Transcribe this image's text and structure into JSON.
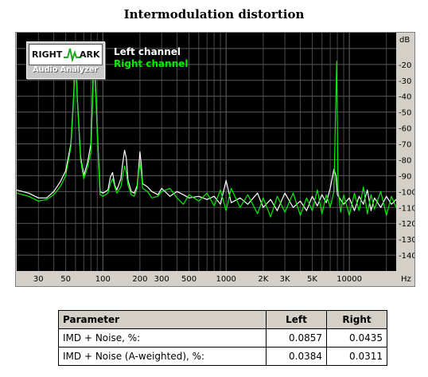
{
  "chart_data": {
    "type": "line",
    "title": "Intermodulation distortion",
    "xscale": "log",
    "xlim": [
      20,
      24000
    ],
    "ylim": [
      -150,
      0
    ],
    "y_unit": "dB",
    "x_unit": "Hz",
    "x_ticks": [
      {
        "value": 30,
        "label": "30"
      },
      {
        "value": 50,
        "label": "50"
      },
      {
        "value": 100,
        "label": "100"
      },
      {
        "value": 200,
        "label": "200"
      },
      {
        "value": 300,
        "label": "300"
      },
      {
        "value": 500,
        "label": "500"
      },
      {
        "value": 1000,
        "label": "1000"
      },
      {
        "value": 2000,
        "label": "2K"
      },
      {
        "value": 3000,
        "label": "3K"
      },
      {
        "value": 5000,
        "label": "5K"
      },
      {
        "value": 10000,
        "label": "10000"
      }
    ],
    "y_ticks": [
      -20,
      -30,
      -40,
      -50,
      -60,
      -70,
      -80,
      -90,
      -100,
      -110,
      -120,
      -130,
      -140
    ],
    "grid": true,
    "legend": "top-left",
    "series": [
      {
        "name": "Left channel",
        "color": "#ffffff",
        "points": [
          [
            20,
            -99
          ],
          [
            25,
            -101
          ],
          [
            30,
            -104
          ],
          [
            35,
            -104
          ],
          [
            40,
            -100
          ],
          [
            45,
            -94
          ],
          [
            50,
            -87
          ],
          [
            55,
            -70
          ],
          [
            58,
            -40
          ],
          [
            60,
            -8
          ],
          [
            62,
            -40
          ],
          [
            66,
            -78
          ],
          [
            70,
            -90
          ],
          [
            75,
            -82
          ],
          [
            80,
            -70
          ],
          [
            85,
            -10
          ],
          [
            90,
            -60
          ],
          [
            95,
            -100
          ],
          [
            100,
            -101
          ],
          [
            105,
            -100
          ],
          [
            110,
            -99
          ],
          [
            115,
            -91
          ],
          [
            120,
            -88
          ],
          [
            125,
            -96
          ],
          [
            130,
            -99
          ],
          [
            140,
            -92
          ],
          [
            145,
            -82
          ],
          [
            150,
            -74
          ],
          [
            155,
            -79
          ],
          [
            160,
            -93
          ],
          [
            170,
            -100
          ],
          [
            180,
            -101
          ],
          [
            190,
            -96
          ],
          [
            195,
            -86
          ],
          [
            200,
            -75
          ],
          [
            205,
            -83
          ],
          [
            210,
            -95
          ],
          [
            230,
            -97
          ],
          [
            250,
            -100
          ],
          [
            280,
            -102
          ],
          [
            300,
            -98
          ],
          [
            350,
            -103
          ],
          [
            400,
            -100
          ],
          [
            450,
            -102
          ],
          [
            500,
            -104
          ],
          [
            600,
            -103
          ],
          [
            700,
            -105
          ],
          [
            800,
            -103
          ],
          [
            900,
            -108
          ],
          [
            1000,
            -93
          ],
          [
            1100,
            -107
          ],
          [
            1300,
            -104
          ],
          [
            1500,
            -108
          ],
          [
            1800,
            -101
          ],
          [
            2000,
            -110
          ],
          [
            2300,
            -105
          ],
          [
            2600,
            -112
          ],
          [
            3000,
            -101
          ],
          [
            3500,
            -110
          ],
          [
            4000,
            -106
          ],
          [
            4500,
            -112
          ],
          [
            5000,
            -103
          ],
          [
            5500,
            -109
          ],
          [
            6000,
            -102
          ],
          [
            6500,
            -107
          ],
          [
            7000,
            -98
          ],
          [
            7500,
            -86
          ],
          [
            7800,
            -90
          ],
          [
            8000,
            -102
          ],
          [
            9000,
            -108
          ],
          [
            10000,
            -104
          ],
          [
            11000,
            -112
          ],
          [
            12000,
            -103
          ],
          [
            13000,
            -108
          ],
          [
            14000,
            -99
          ],
          [
            15000,
            -112
          ],
          [
            16000,
            -104
          ],
          [
            18000,
            -110
          ],
          [
            20000,
            -103
          ],
          [
            22000,
            -108
          ],
          [
            24000,
            -105
          ]
        ]
      },
      {
        "name": "Right channel",
        "color": "#00ee00",
        "points": [
          [
            20,
            -101
          ],
          [
            25,
            -103
          ],
          [
            30,
            -106
          ],
          [
            35,
            -105
          ],
          [
            40,
            -102
          ],
          [
            45,
            -97
          ],
          [
            50,
            -90
          ],
          [
            55,
            -72
          ],
          [
            58,
            -42
          ],
          [
            60,
            -12
          ],
          [
            62,
            -42
          ],
          [
            66,
            -80
          ],
          [
            70,
            -92
          ],
          [
            75,
            -85
          ],
          [
            80,
            -75
          ],
          [
            85,
            -15
          ],
          [
            90,
            -62
          ],
          [
            95,
            -102
          ],
          [
            100,
            -103
          ],
          [
            105,
            -102
          ],
          [
            110,
            -101
          ],
          [
            115,
            -95
          ],
          [
            120,
            -92
          ],
          [
            125,
            -97
          ],
          [
            130,
            -101
          ],
          [
            140,
            -97
          ],
          [
            145,
            -90
          ],
          [
            150,
            -84
          ],
          [
            155,
            -88
          ],
          [
            160,
            -96
          ],
          [
            170,
            -102
          ],
          [
            180,
            -103
          ],
          [
            190,
            -98
          ],
          [
            195,
            -88
          ],
          [
            200,
            -82
          ],
          [
            205,
            -88
          ],
          [
            210,
            -98
          ],
          [
            230,
            -100
          ],
          [
            250,
            -104
          ],
          [
            280,
            -103
          ],
          [
            300,
            -100
          ],
          [
            350,
            -98
          ],
          [
            400,
            -104
          ],
          [
            450,
            -108
          ],
          [
            500,
            -102
          ],
          [
            600,
            -106
          ],
          [
            700,
            -101
          ],
          [
            800,
            -109
          ],
          [
            900,
            -99
          ],
          [
            1000,
            -112
          ],
          [
            1100,
            -98
          ],
          [
            1300,
            -110
          ],
          [
            1500,
            -102
          ],
          [
            1800,
            -114
          ],
          [
            2000,
            -104
          ],
          [
            2300,
            -116
          ],
          [
            2600,
            -103
          ],
          [
            3000,
            -113
          ],
          [
            3500,
            -101
          ],
          [
            4000,
            -115
          ],
          [
            4500,
            -104
          ],
          [
            5000,
            -112
          ],
          [
            5500,
            -99
          ],
          [
            6000,
            -114
          ],
          [
            6500,
            -102
          ],
          [
            7000,
            -110
          ],
          [
            7500,
            -100
          ],
          [
            7900,
            -18
          ],
          [
            8100,
            -98
          ],
          [
            8500,
            -113
          ],
          [
            9000,
            -102
          ],
          [
            10000,
            -115
          ],
          [
            11000,
            -101
          ],
          [
            12000,
            -112
          ],
          [
            13000,
            -97
          ],
          [
            14000,
            -114
          ],
          [
            15000,
            -102
          ],
          [
            16000,
            -111
          ],
          [
            18000,
            -100
          ],
          [
            20000,
            -115
          ],
          [
            22000,
            -103
          ],
          [
            24000,
            -110
          ]
        ]
      }
    ]
  },
  "logo": {
    "line1_left": "RIGHT",
    "line1_right": "ARK",
    "line2": "Audio Analyzer"
  },
  "legend": {
    "left": "Left channel",
    "right": "Right channel"
  },
  "axis_units": {
    "y": "dB",
    "x": "Hz"
  },
  "table": {
    "headers": [
      "Parameter",
      "Left",
      "Right"
    ],
    "rows": [
      {
        "param": "IMD + Noise, %:",
        "left": "0.0857",
        "right": "0.0435"
      },
      {
        "param": "IMD + Noise (A-weighted), %:",
        "left": "0.0384",
        "right": "0.0311"
      }
    ]
  }
}
